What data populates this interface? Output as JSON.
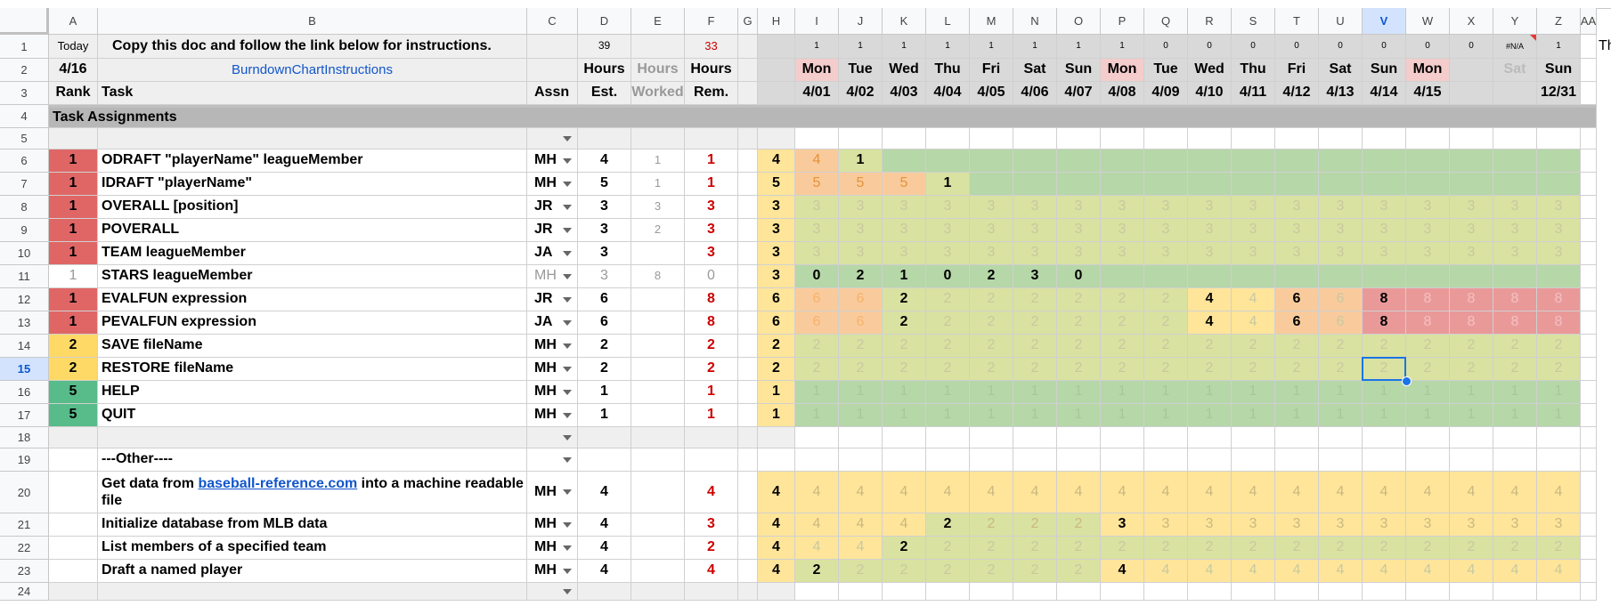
{
  "sheet": {
    "columns": [
      "A",
      "B",
      "C",
      "D",
      "E",
      "F",
      "G",
      "H",
      "I",
      "J",
      "K",
      "L",
      "M",
      "N",
      "O",
      "P",
      "Q",
      "R",
      "S",
      "T",
      "U",
      "V",
      "W",
      "X",
      "Y",
      "Z",
      "AA"
    ],
    "selected_column": "V",
    "selected_row": 15,
    "overflow_text": "This",
    "rows": [
      {
        "n": 1,
        "A": "Today",
        "B": "Copy this doc and follow the link below for instructions.",
        "D": "39",
        "F": "33",
        "days": [
          "1",
          "1",
          "1",
          "1",
          "1",
          "1",
          "1",
          "1",
          "0",
          "0",
          "0",
          "0",
          "0",
          "0",
          "0",
          "0",
          "#N/A",
          "1"
        ]
      },
      {
        "n": 2,
        "A": "4/16",
        "B": "BurndownChartInstructions",
        "D": "Hours",
        "E": "Hours",
        "F": "Hours",
        "days": [
          "Mon",
          "Tue",
          "Wed",
          "Thu",
          "Fri",
          "Sat",
          "Sun",
          "Mon",
          "Tue",
          "Wed",
          "Thu",
          "Fri",
          "Sat",
          "Sun",
          "Mon",
          "",
          "Sat",
          "Sun"
        ]
      },
      {
        "n": 3,
        "A": "Rank",
        "B": "Task",
        "C": "Assn",
        "D": "Est.",
        "E": "Worked",
        "F": "Rem.",
        "days": [
          "4/01",
          "4/02",
          "4/03",
          "4/04",
          "4/05",
          "4/06",
          "4/07",
          "4/08",
          "4/09",
          "4/10",
          "4/11",
          "4/12",
          "4/13",
          "4/14",
          "4/15",
          "",
          "",
          "12/31"
        ]
      },
      {
        "n": 4,
        "A": "Task Assignments"
      },
      {
        "n": 5,
        "dd": true
      },
      {
        "n": 6,
        "A": "1",
        "B": "ODRAFT \"playerName\" leagueMember",
        "C": "MH",
        "D": "4",
        "E": "1",
        "F": "1",
        "H": "4",
        "days": [
          "4",
          "1",
          "",
          "",
          "",
          "",
          "",
          "",
          "",
          "",
          "",
          "",
          "",
          "",
          "",
          "",
          "",
          ""
        ]
      },
      {
        "n": 7,
        "A": "1",
        "B": "IDRAFT \"playerName\"",
        "C": "MH",
        "D": "5",
        "E": "1",
        "F": "1",
        "H": "5",
        "days": [
          "5",
          "5",
          "5",
          "1",
          "",
          "",
          "",
          "",
          "",
          "",
          "",
          "",
          "",
          "",
          "",
          "",
          "",
          ""
        ]
      },
      {
        "n": 8,
        "A": "1",
        "B": "OVERALL [position]",
        "C": "JR",
        "D": "3",
        "E": "3",
        "F": "3",
        "H": "3",
        "days": [
          "3",
          "3",
          "3",
          "3",
          "3",
          "3",
          "3",
          "3",
          "3",
          "3",
          "3",
          "3",
          "3",
          "3",
          "3",
          "3",
          "3",
          "3"
        ]
      },
      {
        "n": 9,
        "A": "1",
        "B": "POVERALL",
        "C": "JR",
        "D": "3",
        "E": "2",
        "F": "3",
        "H": "3",
        "days": [
          "3",
          "3",
          "3",
          "3",
          "3",
          "3",
          "3",
          "3",
          "3",
          "3",
          "3",
          "3",
          "3",
          "3",
          "3",
          "3",
          "3",
          "3"
        ]
      },
      {
        "n": 10,
        "A": "1",
        "B": "TEAM leagueMember",
        "C": "JA",
        "D": "3",
        "F": "3",
        "H": "3",
        "days": [
          "3",
          "3",
          "3",
          "3",
          "3",
          "3",
          "3",
          "3",
          "3",
          "3",
          "3",
          "3",
          "3",
          "3",
          "3",
          "3",
          "3",
          "3"
        ]
      },
      {
        "n": 11,
        "A": "1",
        "B": "STARS leagueMember",
        "C": "MH",
        "D": "3",
        "E": "8",
        "F": "0",
        "H": "3",
        "days": [
          "0",
          "2",
          "1",
          "0",
          "2",
          "3",
          "0",
          "",
          "",
          "",
          "",
          "",
          "",
          "",
          "",
          "",
          "",
          ""
        ]
      },
      {
        "n": 12,
        "A": "1",
        "B": "EVALFUN expression",
        "C": "JR",
        "D": "6",
        "F": "8",
        "H": "6",
        "days": [
          "6",
          "6",
          "2",
          "2",
          "2",
          "2",
          "2",
          "2",
          "2",
          "4",
          "4",
          "6",
          "6",
          "8",
          "8",
          "8",
          "8",
          "8"
        ]
      },
      {
        "n": 13,
        "A": "1",
        "B": "PEVALFUN expression",
        "C": "JA",
        "D": "6",
        "F": "8",
        "H": "6",
        "days": [
          "6",
          "6",
          "2",
          "2",
          "2",
          "2",
          "2",
          "2",
          "2",
          "4",
          "4",
          "6",
          "6",
          "8",
          "8",
          "8",
          "8",
          "8"
        ]
      },
      {
        "n": 14,
        "A": "2",
        "B": "SAVE fileName",
        "C": "MH",
        "D": "2",
        "F": "2",
        "H": "2",
        "days": [
          "2",
          "2",
          "2",
          "2",
          "2",
          "2",
          "2",
          "2",
          "2",
          "2",
          "2",
          "2",
          "2",
          "2",
          "2",
          "2",
          "2",
          "2"
        ]
      },
      {
        "n": 15,
        "A": "2",
        "B": "RESTORE fileName",
        "C": "MH",
        "D": "2",
        "F": "2",
        "H": "2",
        "days": [
          "2",
          "2",
          "2",
          "2",
          "2",
          "2",
          "2",
          "2",
          "2",
          "2",
          "2",
          "2",
          "2",
          "2",
          "2",
          "2",
          "2",
          "2"
        ]
      },
      {
        "n": 16,
        "A": "5",
        "B": "HELP",
        "C": "MH",
        "D": "1",
        "F": "1",
        "H": "1",
        "days": [
          "1",
          "1",
          "1",
          "1",
          "1",
          "1",
          "1",
          "1",
          "1",
          "1",
          "1",
          "1",
          "1",
          "1",
          "1",
          "1",
          "1",
          "1"
        ]
      },
      {
        "n": 17,
        "A": "5",
        "B": "QUIT",
        "C": "MH",
        "D": "1",
        "F": "1",
        "H": "1",
        "days": [
          "1",
          "1",
          "1",
          "1",
          "1",
          "1",
          "1",
          "1",
          "1",
          "1",
          "1",
          "1",
          "1",
          "1",
          "1",
          "1",
          "1",
          "1"
        ]
      },
      {
        "n": 18,
        "dd": true
      },
      {
        "n": 19,
        "B": "---Other----",
        "dd": true
      },
      {
        "n": 20,
        "B_pre": "Get data from ",
        "B_link": "baseball-reference.com",
        "B_post": " into a machine readable file",
        "C": "MH",
        "D": "4",
        "F": "4",
        "H": "4",
        "days": [
          "4",
          "4",
          "4",
          "4",
          "4",
          "4",
          "4",
          "4",
          "4",
          "4",
          "4",
          "4",
          "4",
          "4",
          "4",
          "4",
          "4",
          "4"
        ]
      },
      {
        "n": 21,
        "B": "Initialize database from MLB data",
        "C": "MH",
        "D": "4",
        "F": "3",
        "H": "4",
        "days": [
          "4",
          "4",
          "4",
          "2",
          "2",
          "2",
          "2",
          "3",
          "3",
          "3",
          "3",
          "3",
          "3",
          "3",
          "3",
          "3",
          "3",
          "3"
        ]
      },
      {
        "n": 22,
        "B": "List members of a specified team",
        "C": "MH",
        "D": "4",
        "F": "2",
        "H": "4",
        "days": [
          "4",
          "4",
          "2",
          "2",
          "2",
          "2",
          "2",
          "2",
          "2",
          "2",
          "2",
          "2",
          "2",
          "2",
          "2",
          "2",
          "2",
          "2"
        ]
      },
      {
        "n": 23,
        "B": "Draft a named player",
        "C": "MH",
        "D": "4",
        "F": "4",
        "H": "4",
        "days": [
          "2",
          "2",
          "2",
          "2",
          "2",
          "2",
          "2",
          "4",
          "4",
          "4",
          "4",
          "4",
          "4",
          "4",
          "4",
          "4",
          "4",
          "4"
        ]
      },
      {
        "n": 24,
        "dd": true
      }
    ]
  },
  "colors": {
    "rank1": "#e06666",
    "rank2": "#ffd966",
    "rank5": "#57bb8a",
    "green": "#b6d7a8",
    "olive": "#d9e2a0",
    "yellow": "#ffe599",
    "orange": "#f9cb9c",
    "red": "#ea9999",
    "grayHdr": "#b7b7b7",
    "lightRow": "#efefef",
    "today_red": "#cc0000",
    "link": "#1155cc",
    "selection": "#1a73e8"
  }
}
